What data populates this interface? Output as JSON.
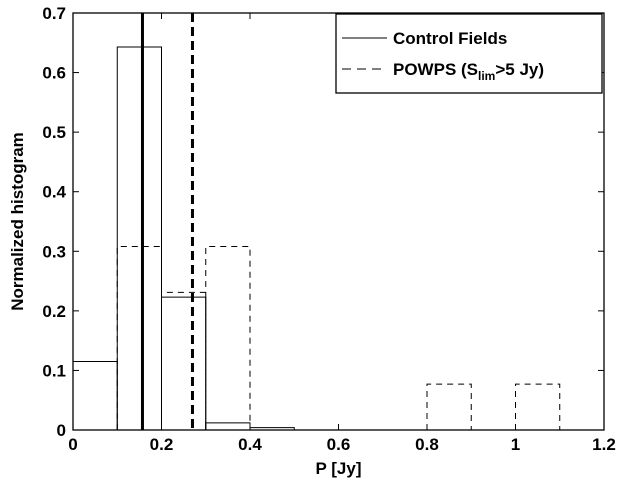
{
  "chart_data": {
    "type": "histogram",
    "xlabel": "P [Jy]",
    "ylabel": "Normalized histogram",
    "xlim": [
      0,
      1.2
    ],
    "ylim": [
      0,
      0.7
    ],
    "xticks": [
      "0",
      "0.2",
      "0.4",
      "0.6",
      "0.8",
      "1",
      "1.2"
    ],
    "yticks": [
      "0",
      "0.1",
      "0.2",
      "0.3",
      "0.4",
      "0.5",
      "0.6",
      "0.7"
    ],
    "bin_edges": [
      0,
      0.1,
      0.2,
      0.3,
      0.4,
      0.5,
      0.6,
      0.7,
      0.8,
      0.9,
      1.0,
      1.1,
      1.2
    ],
    "series": [
      {
        "name": "Control Fields",
        "style": "solid",
        "values": [
          0.115,
          0.643,
          0.223,
          0.012,
          0.004,
          0,
          0,
          0,
          0,
          0,
          0,
          0
        ],
        "median": 0.157
      },
      {
        "name": "POWPS (S_lim>5 Jy)",
        "style": "dashed",
        "values": [
          0,
          0.308,
          0.231,
          0.308,
          0,
          0,
          0,
          0,
          0.077,
          0,
          0.077,
          0
        ],
        "median": 0.27
      }
    ],
    "legend": {
      "position": "top-right",
      "entries": [
        {
          "label": "Control Fields",
          "style": "solid"
        },
        {
          "label_main": "POWPS (S",
          "label_sub": "lim",
          "label_tail": ">5 Jy)",
          "style": "dashed"
        }
      ]
    },
    "grid": false
  }
}
